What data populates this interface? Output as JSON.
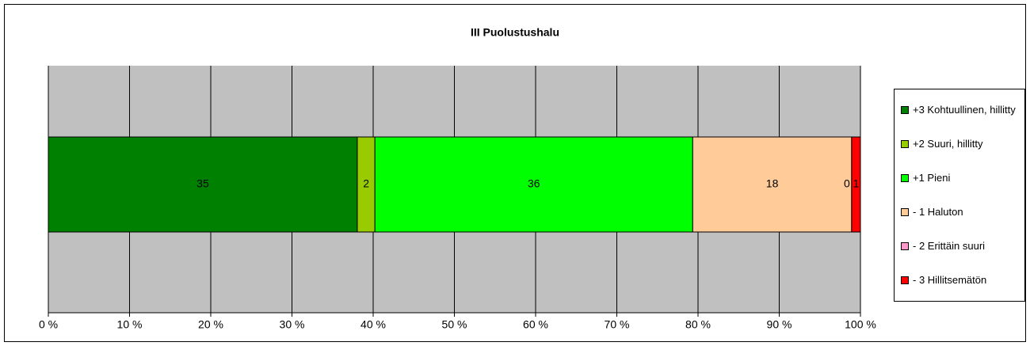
{
  "chart_data": {
    "type": "bar",
    "orientation": "horizontal",
    "stacked": "percent",
    "title": "III Puolustushalu",
    "series": [
      {
        "name": "+3 Kohtuullinen, hillitty",
        "color": "#008000",
        "values": [
          35
        ]
      },
      {
        "name": "+2 Suuri, hillitty",
        "color": "#99cc00",
        "values": [
          2
        ]
      },
      {
        "name": "+1 Pieni",
        "color": "#00ff00",
        "values": [
          36
        ]
      },
      {
        "name": "- 1 Haluton",
        "color": "#ffcc99",
        "values": [
          18
        ]
      },
      {
        "name": "- 2 Erittäin suuri",
        "color": "#ff99cc",
        "values": [
          0
        ]
      },
      {
        "name": "- 3 Hillitsemätön",
        "color": "#ff0000",
        "values": [
          1
        ]
      }
    ],
    "xlim": [
      0,
      100
    ],
    "xticks": [
      {
        "value": 0,
        "label": "0 %"
      },
      {
        "value": 10,
        "label": "10 %"
      },
      {
        "value": 20,
        "label": "20 %"
      },
      {
        "value": 30,
        "label": "30 %"
      },
      {
        "value": 40,
        "label": "40 %"
      },
      {
        "value": 50,
        "label": "50 %"
      },
      {
        "value": 60,
        "label": "60 %"
      },
      {
        "value": 70,
        "label": "70 %"
      },
      {
        "value": 80,
        "label": "80 %"
      },
      {
        "value": 90,
        "label": "90 %"
      },
      {
        "value": 100,
        "label": "100 %"
      }
    ],
    "grid": true,
    "legend": "right"
  }
}
